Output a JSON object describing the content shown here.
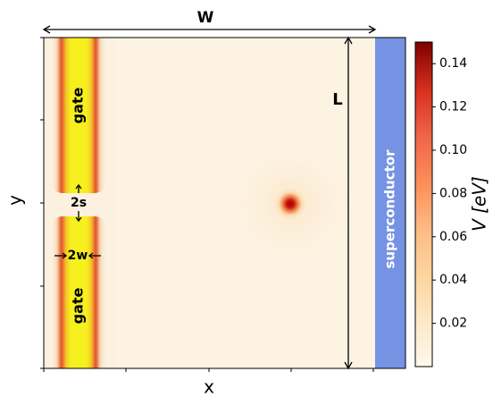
{
  "diagram": {
    "w_label": "W",
    "l_label": "L",
    "x_label": "x",
    "y_label": "y",
    "gate_top_label": "gate",
    "gate_bottom_label": "gate",
    "gap_label": "2s",
    "width_label": "2w",
    "superconductor_label": "superconductor",
    "colors": {
      "background": "#fdf3e3",
      "gate_core": "#f5f01e",
      "gate_edge": "#cc2a1a",
      "superconductor": "#7693e3",
      "dot": "#9e0000"
    }
  },
  "colorbar": {
    "label": "V [eV]",
    "ticks": [
      "0.02",
      "0.04",
      "0.06",
      "0.08",
      "0.10",
      "0.12",
      "0.14"
    ],
    "tick_values": [
      0.02,
      0.04,
      0.06,
      0.08,
      0.1,
      0.12,
      0.14
    ],
    "min": 0,
    "max": 0.15,
    "colormap": "OrRd"
  }
}
